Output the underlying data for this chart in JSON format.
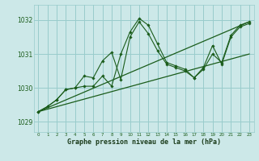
{
  "xlabel": "Graphe pression niveau de la mer (hPa)",
  "bg_color": "#cce8e8",
  "grid_color": "#99cccc",
  "line_color": "#1a5c1a",
  "tick_color": "#1a5c1a",
  "label_color": "#1a3b1a",
  "ylim": [
    1028.7,
    1032.45
  ],
  "xlim": [
    -0.5,
    23.5
  ],
  "yticks": [
    1029,
    1030,
    1031,
    1032
  ],
  "xticks": [
    0,
    1,
    2,
    3,
    4,
    5,
    6,
    7,
    8,
    9,
    10,
    11,
    12,
    13,
    14,
    15,
    16,
    17,
    18,
    19,
    20,
    21,
    22,
    23
  ],
  "trend1_x": [
    0,
    23
  ],
  "trend1_y": [
    1029.3,
    1031.95
  ],
  "trend2_x": [
    0,
    23
  ],
  "trend2_y": [
    1029.3,
    1031.0
  ],
  "series_x": [
    0,
    1,
    2,
    3,
    4,
    5,
    6,
    7,
    8,
    9,
    10,
    11,
    12,
    13,
    14,
    15,
    16,
    17,
    18,
    19,
    20,
    21,
    22,
    23
  ],
  "series1_y": [
    1029.3,
    1029.45,
    1029.65,
    1029.95,
    1030.0,
    1030.05,
    1030.05,
    1030.35,
    1030.05,
    1031.0,
    1031.65,
    1032.05,
    1031.85,
    1031.3,
    1030.75,
    1030.65,
    1030.55,
    1030.3,
    1030.55,
    1031.0,
    1030.75,
    1031.55,
    1031.85,
    1031.95
  ],
  "series2_y": [
    1029.3,
    1029.45,
    1029.65,
    1029.95,
    1030.0,
    1030.35,
    1030.3,
    1030.8,
    1031.05,
    1030.25,
    1031.5,
    1031.95,
    1031.6,
    1031.1,
    1030.7,
    1030.6,
    1030.5,
    1030.3,
    1030.6,
    1031.25,
    1030.7,
    1031.5,
    1031.8,
    1031.9
  ]
}
